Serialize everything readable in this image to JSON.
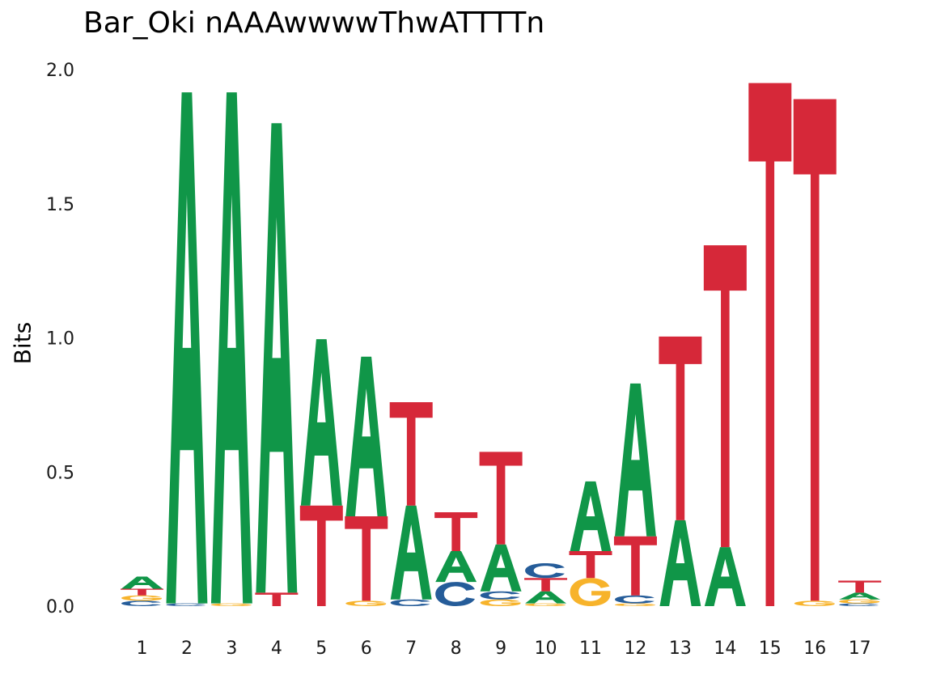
{
  "chart_data": {
    "type": "sequence-logo",
    "title": "Bar_Oki nAAAwwwwThwATTTTn",
    "ylabel": "Bits",
    "ylim": [
      0,
      2.0
    ],
    "y_ticks": [
      "0.0",
      "0.5",
      "1.0",
      "1.5",
      "2.0"
    ],
    "grid": false,
    "colors": {
      "A": "#109648",
      "C": "#255C99",
      "G": "#F7B32B",
      "T": "#D62839"
    },
    "positions": [
      {
        "label": "1",
        "stack": [
          [
            "C",
            0.02
          ],
          [
            "G",
            0.02
          ],
          [
            "T",
            0.025
          ],
          [
            "A",
            0.045
          ]
        ]
      },
      {
        "label": "2",
        "stack": [
          [
            "C",
            0.01
          ],
          [
            "A",
            1.905
          ]
        ]
      },
      {
        "label": "3",
        "stack": [
          [
            "G",
            0.01
          ],
          [
            "A",
            1.905
          ]
        ]
      },
      {
        "label": "4",
        "stack": [
          [
            "T",
            0.05
          ],
          [
            "A",
            1.75
          ]
        ]
      },
      {
        "label": "5",
        "stack": [
          [
            "T",
            0.375
          ],
          [
            "A",
            0.62
          ]
        ]
      },
      {
        "label": "6",
        "stack": [
          [
            "G",
            0.02
          ],
          [
            "T",
            0.315
          ],
          [
            "A",
            0.595
          ]
        ]
      },
      {
        "label": "7",
        "stack": [
          [
            "C",
            0.025
          ],
          [
            "A",
            0.35
          ],
          [
            "T",
            0.385
          ]
        ]
      },
      {
        "label": "8",
        "stack": [
          [
            "C",
            0.09
          ],
          [
            "A",
            0.115
          ],
          [
            "T",
            0.145
          ]
        ]
      },
      {
        "label": "9",
        "stack": [
          [
            "G",
            0.025
          ],
          [
            "C",
            0.03
          ],
          [
            "A",
            0.175
          ],
          [
            "T",
            0.345
          ]
        ]
      },
      {
        "label": "10",
        "stack": [
          [
            "G",
            0.01
          ],
          [
            "A",
            0.045
          ],
          [
            "T",
            0.05
          ],
          [
            "C",
            0.055
          ]
        ]
      },
      {
        "label": "11",
        "stack": [
          [
            "G",
            0.105
          ],
          [
            "T",
            0.1
          ],
          [
            "A",
            0.26
          ]
        ]
      },
      {
        "label": "12",
        "stack": [
          [
            "G",
            0.01
          ],
          [
            "C",
            0.03
          ],
          [
            "T",
            0.22
          ],
          [
            "A",
            0.57
          ]
        ]
      },
      {
        "label": "13",
        "stack": [
          [
            "A",
            0.32
          ],
          [
            "T",
            0.685
          ]
        ]
      },
      {
        "label": "14",
        "stack": [
          [
            "A",
            0.22
          ],
          [
            "T",
            1.125
          ]
        ]
      },
      {
        "label": "15",
        "stack": [
          [
            "T",
            1.95
          ]
        ]
      },
      {
        "label": "16",
        "stack": [
          [
            "G",
            0.02
          ],
          [
            "T",
            1.87
          ]
        ]
      },
      {
        "label": "17",
        "stack": [
          [
            "C",
            0.01
          ],
          [
            "G",
            0.015
          ],
          [
            "A",
            0.025
          ],
          [
            "T",
            0.045
          ]
        ]
      }
    ]
  }
}
